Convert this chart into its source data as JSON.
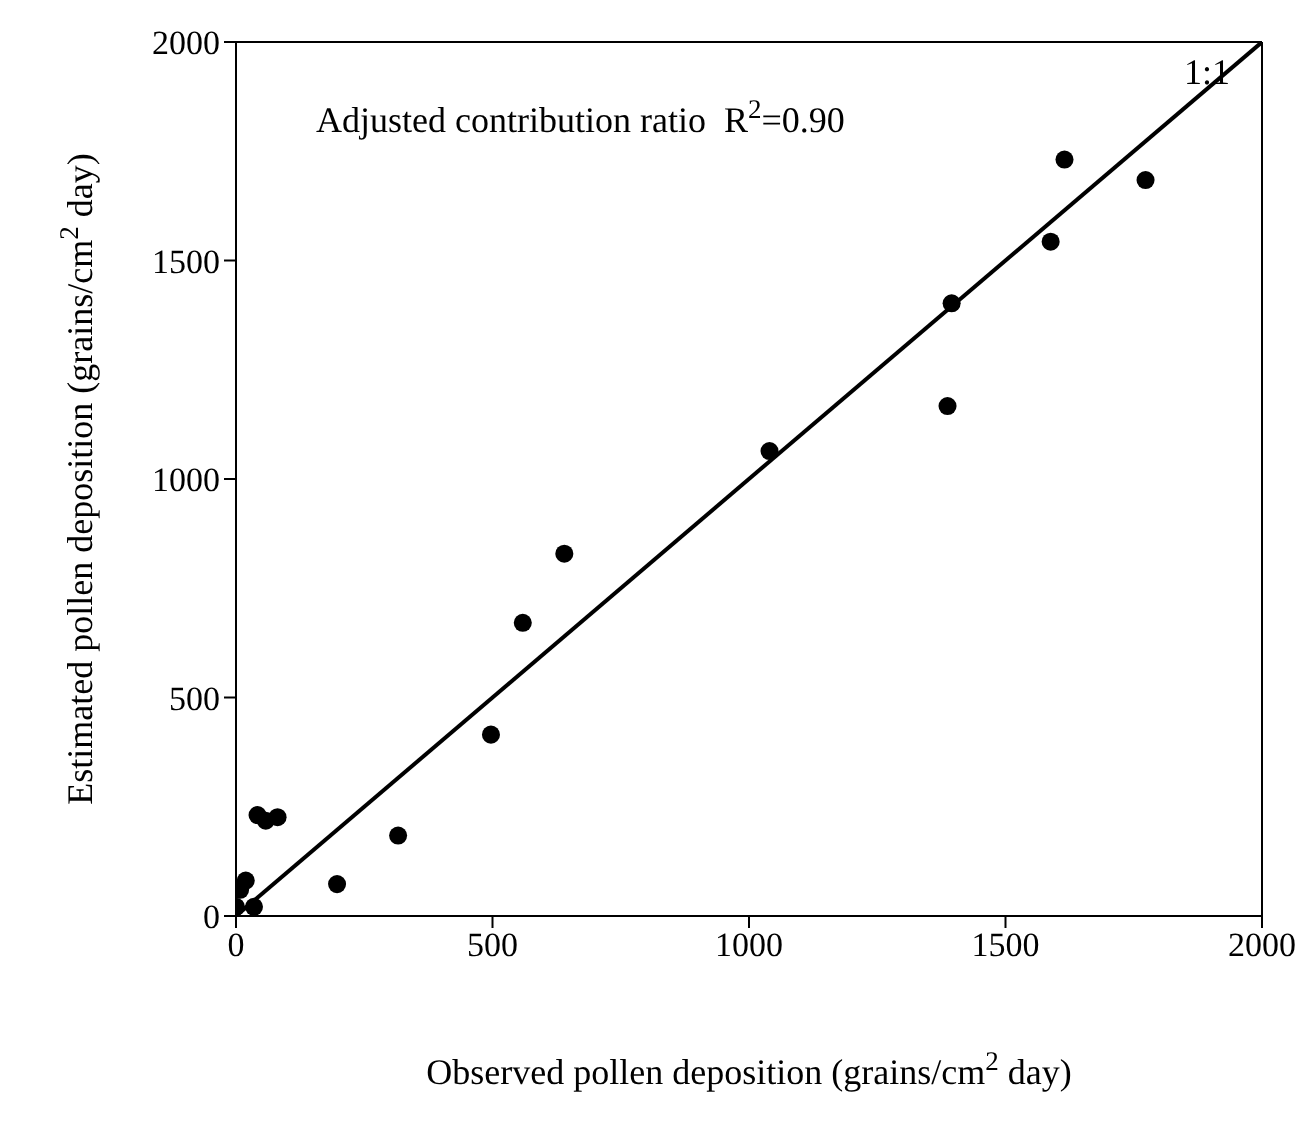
{
  "chart_data": {
    "type": "scatter",
    "xlabel": "Observed pollen deposition (grains/cm$^{2}$ day)",
    "ylabel": "Estimated pollen deposition (grains/cm$^{2}$ day)",
    "xlim": [
      0,
      2000
    ],
    "ylim": [
      0,
      2000
    ],
    "xticks": [
      0,
      500,
      1000,
      1500,
      2000
    ],
    "yticks": [
      0,
      500,
      1000,
      1500,
      2000
    ],
    "marker": "circle",
    "annotations": [
      "Adjusted contribution ratio  R$^{2}$=0.90",
      "1:1"
    ],
    "series": [
      {
        "color": "#000000",
        "x": [
          0,
          35,
          8,
          19,
          42,
          58,
          81,
          197,
          316,
          497,
          559,
          640,
          1040,
          1387,
          1395,
          1588,
          1615,
          1773
        ],
        "values": [
          21,
          21,
          60,
          81,
          231,
          218,
          226,
          73,
          184,
          415,
          671,
          829,
          1064,
          1167,
          1402,
          1543,
          1731,
          1684
        ]
      },
      {
        "type": "line",
        "color": "#000000",
        "marker": "none",
        "line_style": "solid",
        "x": [
          0,
          2000
        ],
        "values": [
          0,
          2000
        ]
      }
    ]
  }
}
